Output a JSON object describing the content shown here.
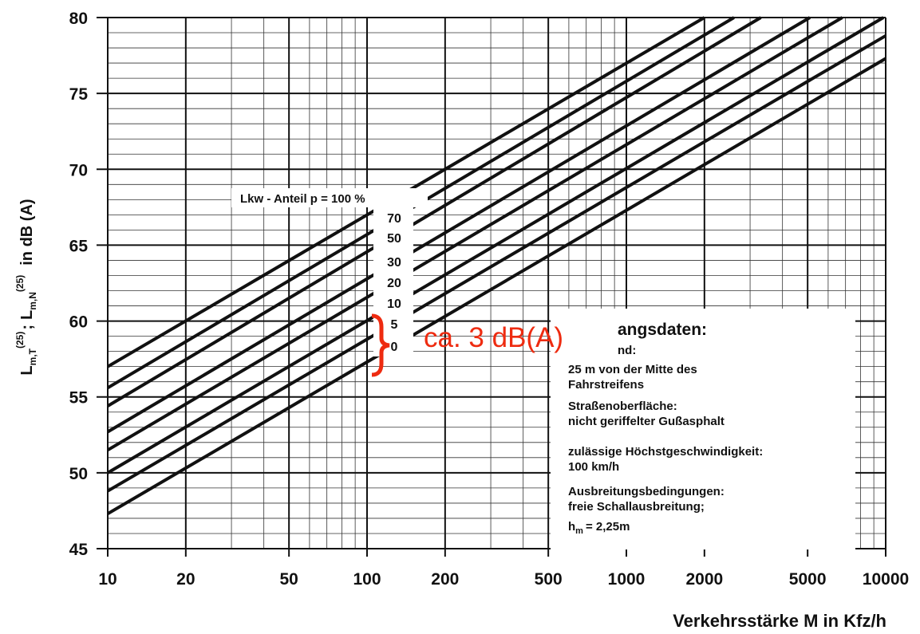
{
  "chart_data": {
    "type": "line",
    "x_scale": "log",
    "xlim": [
      10,
      10000
    ],
    "ylim": [
      45,
      80
    ],
    "x_ticks": [
      "10",
      "20",
      "50",
      "100",
      "200",
      "500",
      "1000",
      "2000",
      "5000",
      "10000"
    ],
    "y_ticks": [
      "45",
      "50",
      "55",
      "60",
      "65",
      "70",
      "75",
      "80"
    ],
    "xlabel": "Verkehrsstärke M in Kfz/h",
    "ylabel": {
      "L1": "L",
      "L1_sub": "m,T",
      "L1_sup": "(25)",
      "sep": ";",
      "L2": "L",
      "L2_sub": "m,N",
      "L2_sup": "(25)",
      "unit": "in dB (A)"
    },
    "grid": true,
    "series_prefix": "Lkw - Anteil p = 100 %",
    "series": [
      {
        "name": "100",
        "x": [
          10,
          2000
        ],
        "y": [
          57.0,
          80.0
        ]
      },
      {
        "name": "70",
        "x": [
          10,
          2600
        ],
        "y": [
          55.6,
          80.0
        ]
      },
      {
        "name": "50",
        "x": [
          10,
          3300
        ],
        "y": [
          54.4,
          80.0
        ]
      },
      {
        "name": "30",
        "x": [
          10,
          5100
        ],
        "y": [
          52.7,
          80.0
        ]
      },
      {
        "name": "20",
        "x": [
          10,
          6800
        ],
        "y": [
          51.5,
          80.0
        ]
      },
      {
        "name": "10",
        "x": [
          10,
          9800
        ],
        "y": [
          50.0,
          80.0
        ]
      },
      {
        "name": "5",
        "x": [
          10,
          10000
        ],
        "y": [
          48.8,
          78.8
        ]
      },
      {
        "name": "0",
        "x": [
          10,
          10000
        ],
        "y": [
          47.3,
          77.3
        ]
      }
    ],
    "info_box": {
      "title": "angsdaten:",
      "line_abstand_tail": "nd:",
      "abstand": "25 m von der Mitte des",
      "abstand2": "Fahrstreifens",
      "surface_label": "Straßenoberfläche:",
      "surface": "nicht geriffelter Gußasphalt",
      "speed_label": "zulässige Höchstgeschwindigkeit:",
      "speed": "100 km/h",
      "spread_label": "Ausbreitungsbedingungen:",
      "spread": "freie Schallausbreitung;",
      "height_h": "h",
      "height_sub": "m",
      "height_val": "= 2,25m"
    },
    "annotation": {
      "text": "ca. 3 dB(A)",
      "color": "#ee2b10"
    }
  }
}
